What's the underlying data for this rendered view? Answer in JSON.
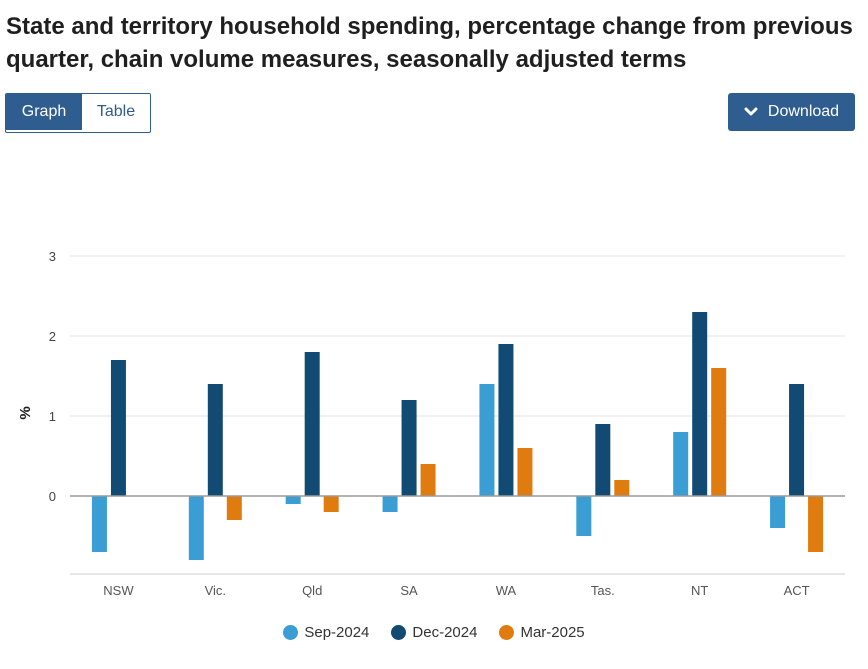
{
  "page": {
    "title": "State and territory household spending, percentage change from previous quarter, chain volume measures, seasonally adjusted terms"
  },
  "toolbar": {
    "graph_label": "Graph",
    "table_label": "Table",
    "download_label": "Download",
    "download_icon": "chevron-down-icon"
  },
  "colors": {
    "button": "#2f5d8f",
    "series": [
      "#3a9ed4",
      "#114a72",
      "#e07b10"
    ]
  },
  "chart_data": {
    "type": "bar",
    "title": "",
    "xlabel": "",
    "ylabel": "%",
    "ylim": [
      -1,
      3
    ],
    "yticks": [
      "0",
      "1",
      "2",
      "3"
    ],
    "grid": true,
    "legend_position": "bottom",
    "categories": [
      "NSW",
      "Vic.",
      "Qld",
      "SA",
      "WA",
      "Tas.",
      "NT",
      "ACT"
    ],
    "series": [
      {
        "name": "Sep-2024",
        "values": [
          -0.7,
          -0.8,
          -0.1,
          -0.2,
          1.4,
          -0.5,
          0.8,
          -0.4
        ]
      },
      {
        "name": "Dec-2024",
        "values": [
          1.7,
          1.4,
          1.8,
          1.2,
          1.9,
          0.9,
          2.3,
          1.4
        ]
      },
      {
        "name": "Mar-2025",
        "values": [
          0.0,
          -0.3,
          -0.2,
          0.4,
          0.6,
          0.2,
          1.6,
          -0.7
        ]
      }
    ]
  }
}
